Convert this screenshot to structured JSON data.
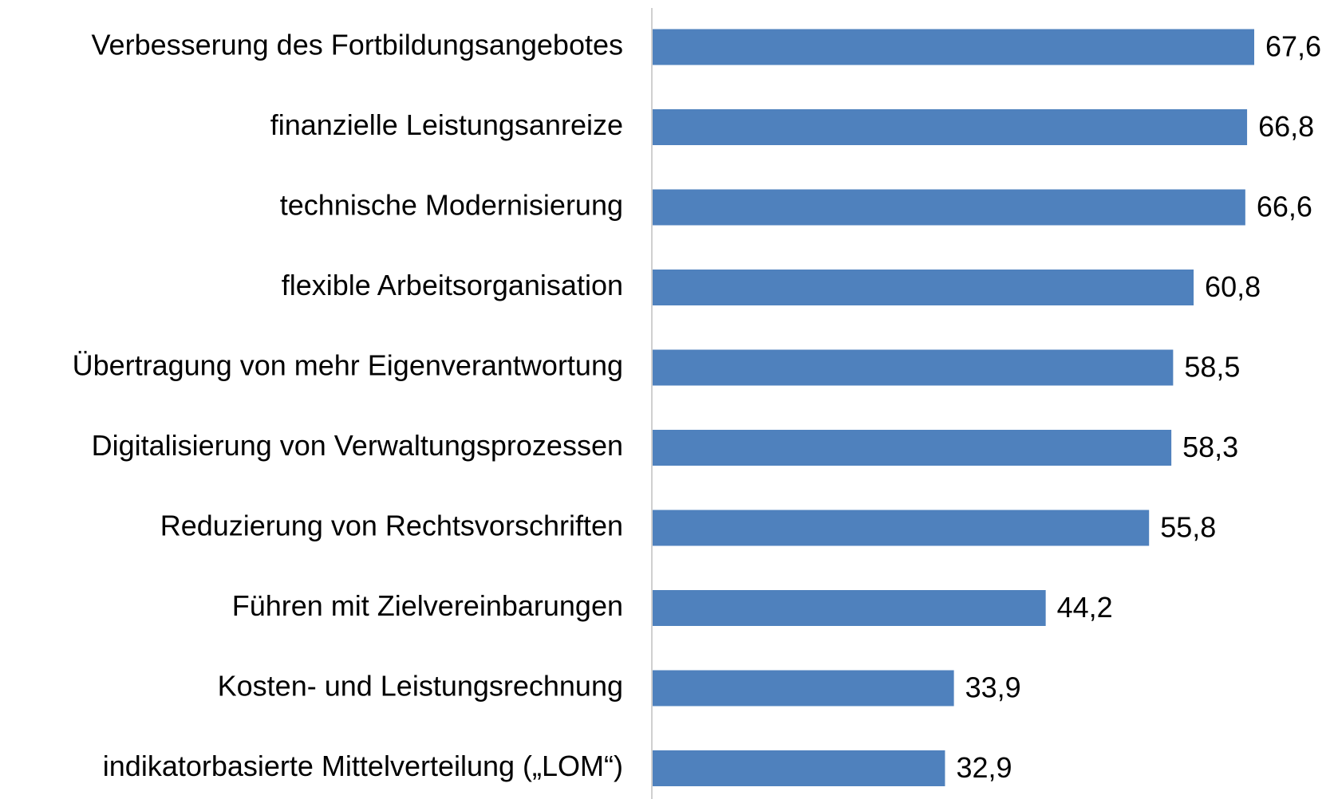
{
  "chart_data": {
    "type": "bar",
    "orientation": "horizontal",
    "categories": [
      "Verbesserung des Fortbildungsangebotes",
      "finanzielle Leistungsanreize",
      "technische Modernisierung",
      "flexible Arbeitsorganisation",
      "Übertragung von mehr Eigenverantwortung",
      "Digitalisierung von Verwaltungsprozessen",
      "Reduzierung von Rechtsvorschriften",
      "Führen mit Zielvereinbarungen",
      "Kosten- und Leistungsrechnung",
      "indikatorbasierte Mittelverteilung („LOM“)"
    ],
    "values": [
      67.6,
      66.8,
      66.6,
      60.8,
      58.5,
      58.3,
      55.8,
      44.2,
      33.9,
      32.9
    ],
    "value_labels": [
      "67,6",
      "66,8",
      "66,6",
      "60,8",
      "58,5",
      "58,3",
      "55,8",
      "44,2",
      "33,9",
      "32,9"
    ],
    "color": "#4f81bd"
  }
}
